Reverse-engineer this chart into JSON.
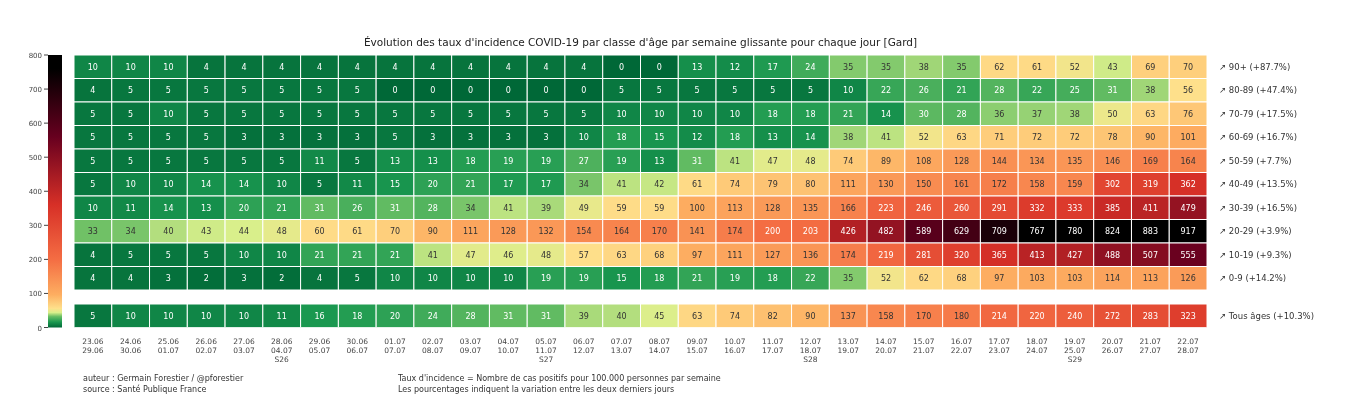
{
  "chart_data": [
    {
      "type": "heatmap",
      "title": "Évolution des taux d'incidence COVID-19 par classe d'âge par semaine glissante pour chaque jour [Gard]",
      "tick_labels": "y",
      "data_labels": true,
      "clim": [
        0,
        800
      ],
      "cticks": [
        0,
        100,
        200,
        300,
        400,
        500,
        600,
        700,
        800
      ],
      "categories": [
        null,
        null,
        null,
        null,
        null,
        null,
        null,
        null,
        null,
        null,
        null,
        null,
        null,
        null,
        null,
        null,
        null,
        null,
        null,
        null,
        null,
        null,
        null,
        null,
        null,
        null,
        null,
        null,
        null,
        null
      ],
      "y_categories": [
        "↗ 90+ (+87.7%)",
        "↗ 80-89 (+47.4%)",
        "↗ 70-79 (+17.5%)",
        "↗ 60-69 (+16.7%)",
        "↗ 50-59 (+7.7%)",
        "↗ 40-49 (+13.5%)",
        "↗ 30-39 (+16.5%)",
        "↗ 20-29 (+3.9%)",
        "↗ 10-19 (+9.3%)",
        "↗ 0-9 (+14.2%)"
      ],
      "cells": [
        [
          10,
          10,
          10,
          4,
          4,
          4,
          4,
          4,
          4,
          4,
          4,
          4,
          4,
          4,
          0,
          0,
          13,
          12,
          17,
          24,
          35,
          35,
          38,
          35,
          62,
          61,
          52,
          43,
          69,
          70
        ],
        [
          4,
          5,
          5,
          5,
          5,
          5,
          5,
          5,
          0,
          0,
          0,
          0,
          0,
          0,
          5,
          5,
          5,
          5,
          5,
          5,
          10,
          22,
          26,
          21,
          28,
          22,
          25,
          31,
          38,
          56
        ],
        [
          5,
          5,
          10,
          5,
          5,
          5,
          5,
          5,
          5,
          5,
          5,
          5,
          5,
          5,
          10,
          10,
          10,
          10,
          18,
          18,
          21,
          14,
          30,
          28,
          36,
          37,
          38,
          50,
          63,
          76
        ],
        [
          5,
          5,
          5,
          5,
          3,
          3,
          3,
          3,
          5,
          3,
          3,
          3,
          3,
          10,
          18,
          15,
          12,
          18,
          13,
          14,
          38,
          41,
          52,
          63,
          71,
          72,
          72,
          78,
          90,
          101
        ],
        [
          5,
          5,
          5,
          5,
          5,
          5,
          11,
          5,
          13,
          13,
          18,
          19,
          19,
          27,
          19,
          13,
          31,
          41,
          47,
          48,
          74,
          89,
          108,
          128,
          144,
          134,
          135,
          146,
          169,
          164
        ],
        [
          5,
          10,
          10,
          14,
          14,
          10,
          5,
          11,
          15,
          20,
          21,
          17,
          17,
          34,
          41,
          42,
          61,
          74,
          79,
          80,
          111,
          130,
          150,
          161,
          172,
          158,
          159,
          302,
          319,
          362
        ],
        [
          10,
          11,
          14,
          13,
          20,
          21,
          31,
          26,
          31,
          28,
          34,
          41,
          39,
          49,
          59,
          59,
          100,
          113,
          128,
          135,
          166,
          223,
          246,
          260,
          291,
          332,
          333,
          385,
          411,
          479
        ],
        [
          33,
          34,
          40,
          43,
          44,
          48,
          60,
          61,
          70,
          90,
          111,
          128,
          132,
          154,
          164,
          170,
          141,
          174,
          200,
          203,
          426,
          482,
          589,
          629,
          709,
          767,
          780,
          824,
          883,
          917
        ],
        [
          4,
          5,
          5,
          5,
          10,
          10,
          21,
          21,
          21,
          41,
          47,
          46,
          48,
          57,
          63,
          68,
          97,
          111,
          127,
          136,
          174,
          219,
          281,
          320,
          365,
          413,
          427,
          488,
          507,
          555
        ],
        [
          4,
          4,
          3,
          2,
          3,
          2,
          4,
          5,
          10,
          10,
          10,
          10,
          19,
          19,
          15,
          18,
          21,
          19,
          18,
          22,
          35,
          52,
          62,
          68,
          97,
          103,
          103,
          114,
          113,
          126
        ]
      ]
    },
    {
      "type": "heatmap",
      "data_labels": true,
      "categories": [
        "23.06\n29.06",
        "24.06\n30.06",
        "25.06\n01.07",
        "26.06\n02.07",
        "27.06\n03.07",
        "28.06\n04.07\nS26",
        "29.06\n05.07",
        "30.06\n06.07",
        "01.07\n07.07",
        "02.07\n08.07",
        "03.07\n09.07",
        "04.07\n10.07",
        "05.07\n11.07\nS27",
        "06.07\n12.07",
        "07.07\n13.07",
        "08.07\n14.07",
        "09.07\n15.07",
        "10.07\n16.07",
        "11.07\n17.07",
        "12.07\n18.07\nS28",
        "13.07\n19.07",
        "14.07\n20.07",
        "15.07\n21.07",
        "16.07\n22.07",
        "17.07\n23.07",
        "18.07\n24.07",
        "19.07\n25.07\nS29",
        "20.07\n26.07",
        "21.07\n27.07",
        "22.07\n28.07"
      ],
      "y_categories": [
        "↗ Tous âges (+10.3%)"
      ],
      "cells": [
        [
          5,
          10,
          10,
          10,
          10,
          11,
          16,
          18,
          20,
          24,
          28,
          31,
          31,
          39,
          40,
          45,
          63,
          74,
          82,
          90,
          137,
          158,
          170,
          180,
          214,
          220,
          240,
          272,
          283,
          323
        ]
      ],
      "annotations": [
        "auteur : Germain Forestier / @pforestier",
        "source : Santé Publique France",
        "Taux d'incidence = Nombre de cas positifs pour 100.000 personnes par semaine",
        "Les pourcentages indiquent la variation entre les deux derniers jours"
      ]
    }
  ]
}
